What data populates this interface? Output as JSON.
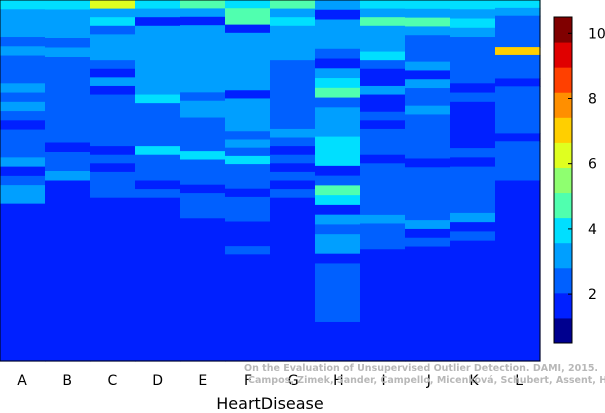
{
  "chart_data": {
    "type": "heatmap",
    "title": "",
    "xlabel": "HeartDisease",
    "ylabel": "",
    "categories": [
      "A",
      "B",
      "C",
      "D",
      "E",
      "F",
      "G",
      "H",
      "I",
      "J",
      "K",
      "L"
    ],
    "colorbar": {
      "min": 0.5,
      "max": 10.5,
      "ticks": [
        2,
        4,
        6,
        8,
        10
      ],
      "colors": [
        "#00008f",
        "#0020ff",
        "#0060ff",
        "#009fff",
        "#00dfff",
        "#50ffaf",
        "#8fff70",
        "#dfff20",
        "#ffcf00",
        "#ff8f00",
        "#ff4000",
        "#e00000",
        "#800000"
      ]
    },
    "columns": [
      {
        "name": "A",
        "runs": [
          [
            4,
            1
          ],
          [
            3,
            3
          ],
          [
            2,
            1
          ],
          [
            3,
            1
          ],
          [
            2,
            3
          ],
          [
            3,
            1
          ],
          [
            2,
            1
          ],
          [
            3,
            1
          ],
          [
            2,
            1
          ],
          [
            1,
            1
          ],
          [
            2,
            3
          ],
          [
            3,
            1
          ],
          [
            1,
            1
          ],
          [
            2,
            1
          ],
          [
            3,
            2
          ],
          [
            1,
            17
          ]
        ]
      },
      {
        "name": "B",
        "runs": [
          [
            4,
            1
          ],
          [
            3,
            3
          ],
          [
            2,
            1
          ],
          [
            3,
            1
          ],
          [
            2,
            9
          ],
          [
            1,
            1
          ],
          [
            2,
            2
          ],
          [
            3,
            1
          ],
          [
            1,
            19
          ]
        ]
      },
      {
        "name": "C",
        "runs": [
          [
            6,
            1
          ],
          [
            3,
            1
          ],
          [
            4,
            1
          ],
          [
            2,
            1
          ],
          [
            3,
            3
          ],
          [
            2,
            1
          ],
          [
            1,
            1
          ],
          [
            3,
            1
          ],
          [
            1,
            1
          ],
          [
            2,
            6
          ],
          [
            1,
            1
          ],
          [
            2,
            1
          ],
          [
            1,
            1
          ],
          [
            2,
            3
          ],
          [
            1,
            19
          ]
        ]
      },
      {
        "name": "D",
        "runs": [
          [
            4,
            1
          ],
          [
            3,
            1
          ],
          [
            1,
            1
          ],
          [
            3,
            8
          ],
          [
            4,
            1
          ],
          [
            2,
            5
          ],
          [
            4,
            1
          ],
          [
            2,
            3
          ],
          [
            1,
            1
          ],
          [
            2,
            1
          ],
          [
            1,
            19
          ]
        ]
      },
      {
        "name": "E",
        "runs": [
          [
            5,
            1
          ],
          [
            3,
            1
          ],
          [
            1,
            1
          ],
          [
            3,
            8
          ],
          [
            2,
            1
          ],
          [
            3,
            2
          ],
          [
            2,
            4
          ],
          [
            4,
            1
          ],
          [
            2,
            3
          ],
          [
            1,
            1
          ],
          [
            2,
            3
          ],
          [
            1,
            17
          ]
        ]
      },
      {
        "name": "F",
        "runs": [
          [
            4,
            1
          ],
          [
            5,
            2
          ],
          [
            1,
            1
          ],
          [
            3,
            7
          ],
          [
            1,
            1
          ],
          [
            3,
            4
          ],
          [
            2,
            1
          ],
          [
            3,
            1
          ],
          [
            2,
            1
          ],
          [
            4,
            1
          ],
          [
            2,
            3
          ],
          [
            1,
            1
          ],
          [
            2,
            3
          ],
          [
            1,
            3
          ],
          [
            2,
            1
          ],
          [
            1,
            13
          ]
        ]
      },
      {
        "name": "G",
        "runs": [
          [
            5,
            1
          ],
          [
            3,
            1
          ],
          [
            4,
            1
          ],
          [
            3,
            4
          ],
          [
            2,
            8
          ],
          [
            3,
            1
          ],
          [
            2,
            1
          ],
          [
            1,
            1
          ],
          [
            2,
            1
          ],
          [
            1,
            1
          ],
          [
            2,
            1
          ],
          [
            1,
            1
          ],
          [
            2,
            1
          ],
          [
            1,
            19
          ]
        ]
      },
      {
        "name": "H",
        "runs": [
          [
            3,
            1
          ],
          [
            1,
            1
          ],
          [
            3,
            3
          ],
          [
            2,
            1
          ],
          [
            1,
            1
          ],
          [
            3,
            1
          ],
          [
            4,
            1
          ],
          [
            5,
            1
          ],
          [
            2,
            1
          ],
          [
            3,
            3
          ],
          [
            4,
            3
          ],
          [
            1,
            1
          ],
          [
            2,
            1
          ],
          [
            5,
            1
          ],
          [
            4,
            1
          ],
          [
            1,
            1
          ],
          [
            3,
            1
          ],
          [
            2,
            1
          ],
          [
            3,
            2
          ],
          [
            1,
            1
          ],
          [
            2,
            6
          ],
          [
            1,
            4
          ]
        ]
      },
      {
        "name": "I",
        "runs": [
          [
            4,
            1
          ],
          [
            3,
            1
          ],
          [
            5,
            1
          ],
          [
            3,
            3
          ],
          [
            4,
            1
          ],
          [
            2,
            1
          ],
          [
            1,
            2
          ],
          [
            3,
            1
          ],
          [
            1,
            2
          ],
          [
            2,
            1
          ],
          [
            1,
            1
          ],
          [
            2,
            3
          ],
          [
            1,
            1
          ],
          [
            2,
            6
          ],
          [
            3,
            1
          ],
          [
            2,
            3
          ],
          [
            1,
            13
          ]
        ]
      },
      {
        "name": "J",
        "runs": [
          [
            4,
            1
          ],
          [
            3,
            1
          ],
          [
            5,
            1
          ],
          [
            3,
            1
          ],
          [
            2,
            3
          ],
          [
            3,
            1
          ],
          [
            1,
            1
          ],
          [
            3,
            1
          ],
          [
            2,
            2
          ],
          [
            3,
            1
          ],
          [
            2,
            5
          ],
          [
            1,
            1
          ],
          [
            2,
            6
          ],
          [
            3,
            1
          ],
          [
            1,
            1
          ],
          [
            2,
            1
          ],
          [
            1,
            13
          ]
        ]
      },
      {
        "name": "K",
        "runs": [
          [
            4,
            1
          ],
          [
            3,
            1
          ],
          [
            4,
            1
          ],
          [
            3,
            1
          ],
          [
            2,
            5
          ],
          [
            1,
            1
          ],
          [
            2,
            1
          ],
          [
            1,
            5
          ],
          [
            2,
            1
          ],
          [
            1,
            1
          ],
          [
            2,
            5
          ],
          [
            3,
            1
          ],
          [
            1,
            1
          ],
          [
            2,
            1
          ],
          [
            1,
            13
          ]
        ]
      },
      {
        "name": "L",
        "runs": [
          [
            4,
            1
          ],
          [
            3,
            1
          ],
          [
            2,
            4
          ],
          [
            7,
            1
          ],
          [
            2,
            3
          ],
          [
            1,
            1
          ],
          [
            2,
            6
          ],
          [
            1,
            1
          ],
          [
            2,
            5
          ],
          [
            1,
            23
          ]
        ]
      }
    ]
  },
  "credit": {
    "line1": "On the Evaluation of Unsupervised Outlier Detection. DAMI, 2015.",
    "line2": "Campos, Zimek, Sander, Campello, Micenková, Schubert, Assent, Houle"
  }
}
